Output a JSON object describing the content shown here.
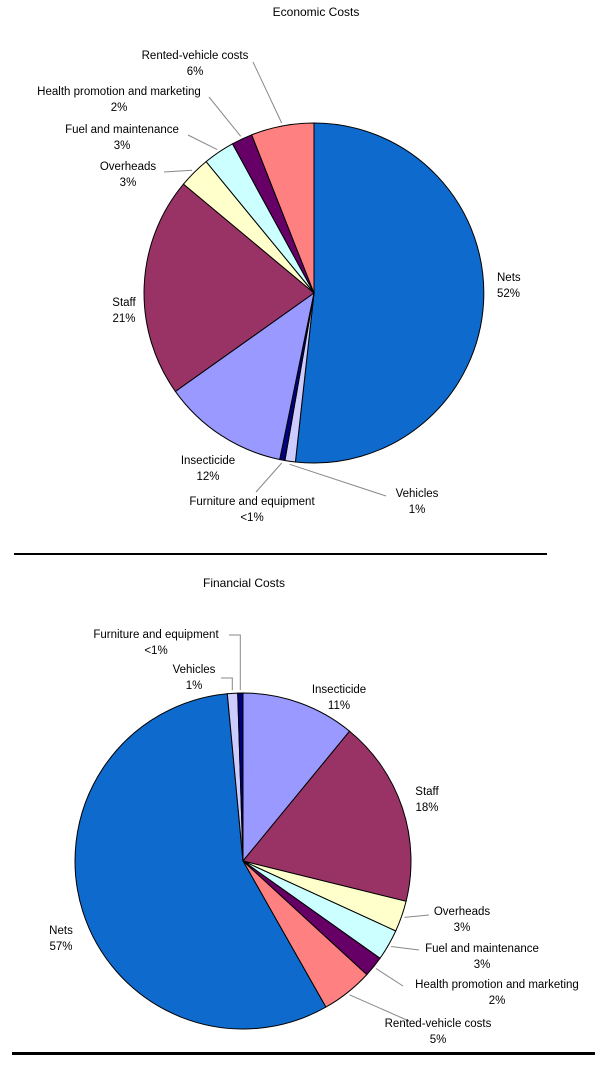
{
  "page": {
    "background": "#ffffff"
  },
  "chart_data": [
    {
      "type": "pie",
      "title": "Economic Costs",
      "legend": "none (direct slice labels with percentages)",
      "start_angle": "12 o'clock, clockwise",
      "slices": [
        {
          "label": "Nets",
          "pct_label": "52%",
          "value": 52,
          "color": "#0E6ACC"
        },
        {
          "label": "Vehicles",
          "pct_label": "1%",
          "value": 1,
          "color": "#CCCCFF"
        },
        {
          "label": "Furniture and equipment",
          "pct_label": "<1%",
          "value": 0.5,
          "color": "#000080"
        },
        {
          "label": "Insecticide",
          "pct_label": "12%",
          "value": 12,
          "color": "#9999FF"
        },
        {
          "label": "Staff",
          "pct_label": "21%",
          "value": 21,
          "color": "#993366"
        },
        {
          "label": "Overheads",
          "pct_label": "3%",
          "value": 3,
          "color": "#FFFFCC"
        },
        {
          "label": "Fuel and maintenance",
          "pct_label": "3%",
          "value": 3,
          "color": "#CCFFFF"
        },
        {
          "label": "Health promotion and marketing",
          "pct_label": "2%",
          "value": 2,
          "color": "#660066"
        },
        {
          "label": "Rented-vehicle costs",
          "pct_label": "6%",
          "value": 6,
          "color": "#FF8080"
        }
      ]
    },
    {
      "type": "pie",
      "title": "Financial Costs",
      "legend": "none (direct slice labels with percentages)",
      "start_angle": "12 o'clock, clockwise",
      "slices": [
        {
          "label": "Insecticide",
          "pct_label": "11%",
          "value": 11,
          "color": "#9999FF"
        },
        {
          "label": "Staff",
          "pct_label": "18%",
          "value": 18,
          "color": "#993366"
        },
        {
          "label": "Overheads",
          "pct_label": "3%",
          "value": 3,
          "color": "#FFFFCC"
        },
        {
          "label": "Fuel and maintenance",
          "pct_label": "3%",
          "value": 3,
          "color": "#CCFFFF"
        },
        {
          "label": "Health promotion and marketing",
          "pct_label": "2%",
          "value": 2,
          "color": "#660066"
        },
        {
          "label": "Rented-vehicle costs",
          "pct_label": "5%",
          "value": 5,
          "color": "#FF8080"
        },
        {
          "label": "Nets",
          "pct_label": "57%",
          "value": 57,
          "color": "#0E6ACC"
        },
        {
          "label": "Vehicles",
          "pct_label": "1%",
          "value": 1,
          "color": "#CCCCFF"
        },
        {
          "label": "Furniture and equipment",
          "pct_label": "<1%",
          "value": 0.5,
          "color": "#000080"
        }
      ]
    }
  ]
}
